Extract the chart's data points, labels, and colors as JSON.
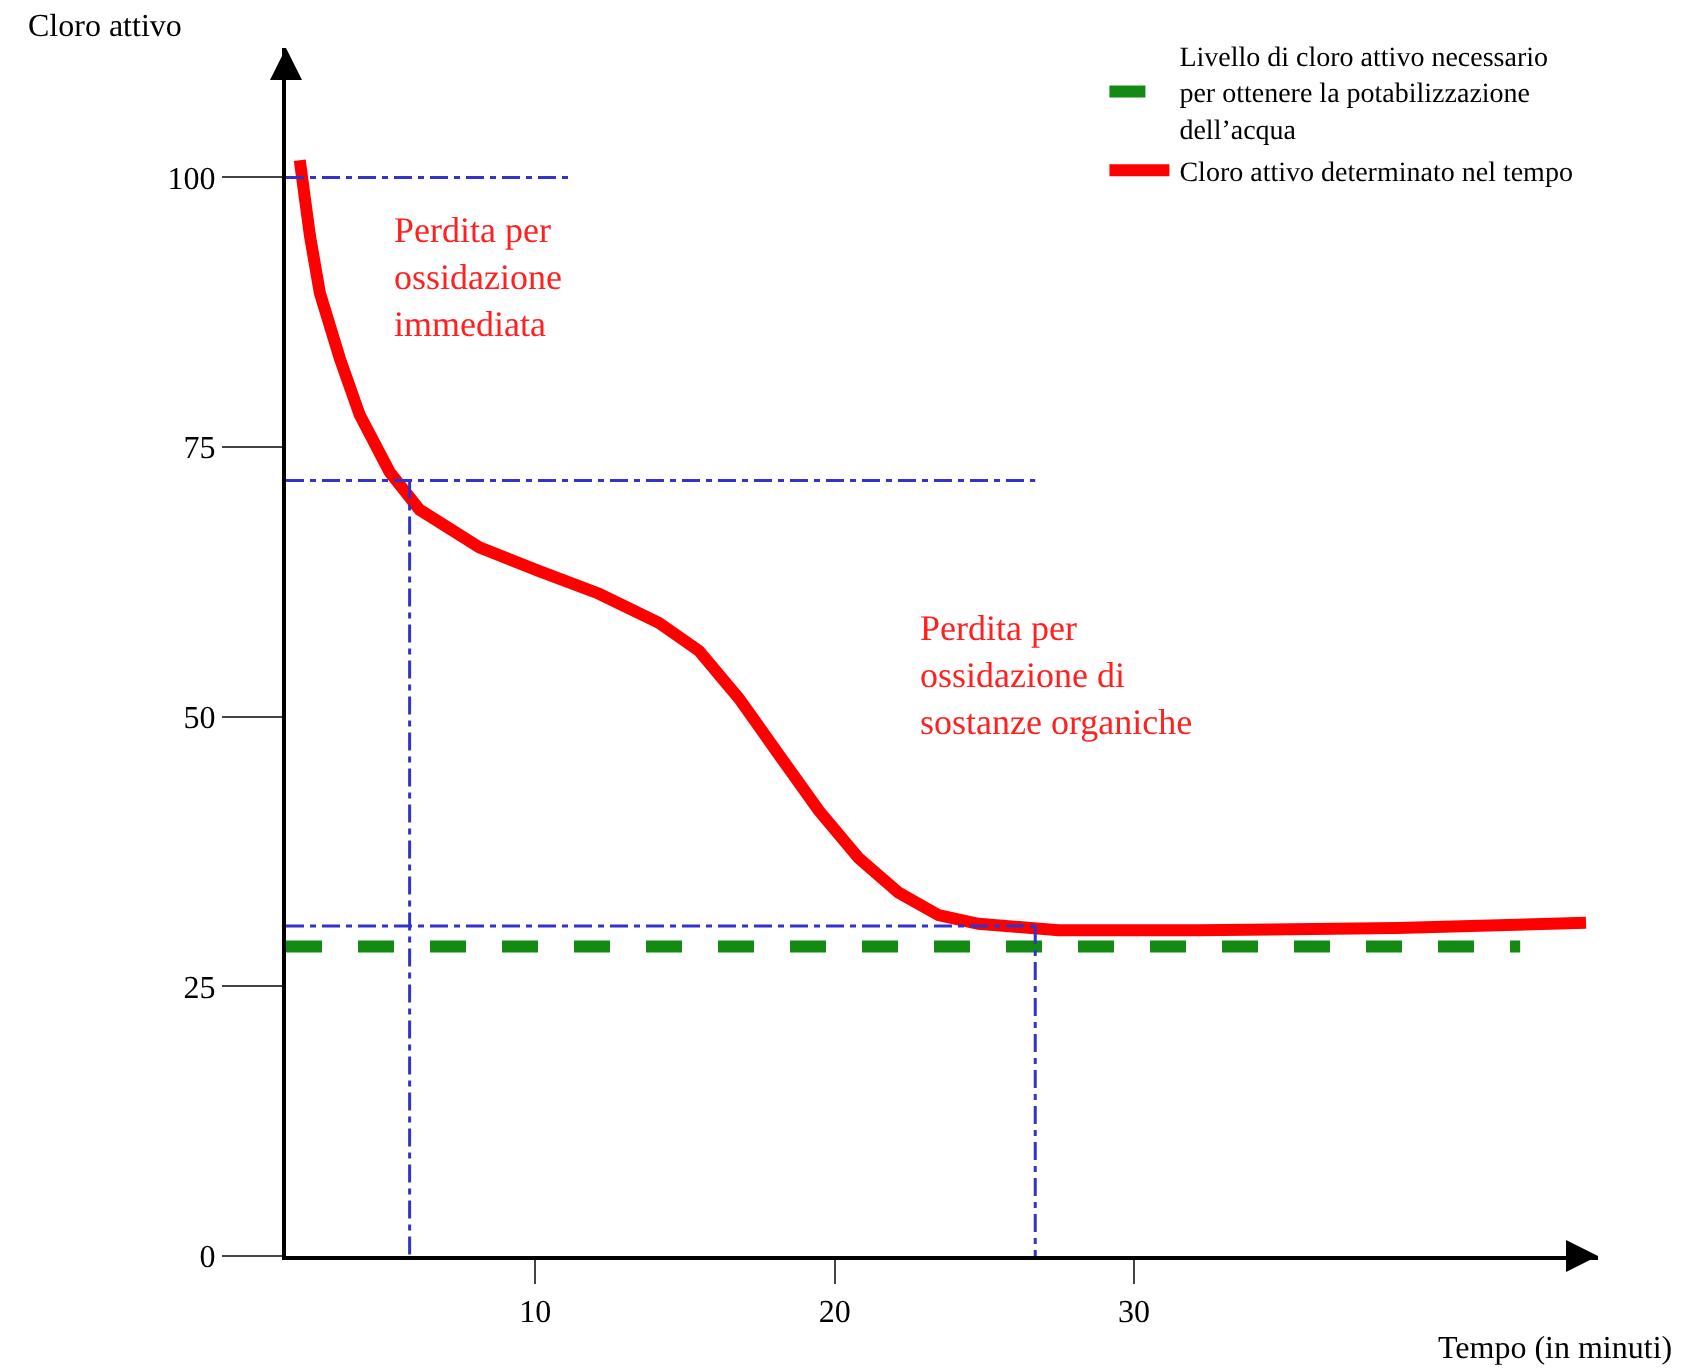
{
  "chart_data": {
    "type": "line",
    "xlabel": "Tempo (in minuti)",
    "ylabel": "Cloro attivo",
    "xlim": [
      1.67,
      45.5
    ],
    "xticks": [
      10,
      20,
      30
    ],
    "ylim": [
      0,
      112
    ],
    "yticks": [
      0,
      25,
      50,
      75,
      100
    ],
    "grid": false,
    "legend": "top right",
    "marker": "none",
    "series": [
      {
        "name": "Livello di cloro attivo necessario per ottenere la potabilizzazione dell’acqua",
        "color": "#138a13",
        "line_style": "dashed",
        "x": [
          1.67,
          42.9
        ],
        "values": [
          28.7,
          28.7
        ]
      },
      {
        "name": "Cloro attivo determinato nel tempo",
        "color": "#ff0000",
        "line_style": "solid",
        "x": [
          2.13,
          2.47,
          2.8,
          3.47,
          4.13,
          5.13,
          6.13,
          8.13,
          10.13,
          12.13,
          14.13,
          15.47,
          16.8,
          18.13,
          19.47,
          20.8,
          22.13,
          23.47,
          24.8,
          27.47,
          32.13,
          38.8,
          45.1
        ],
        "values": [
          101.6,
          94.6,
          89.3,
          83.2,
          78,
          72.7,
          69.2,
          65.7,
          63.5,
          61.4,
          58.7,
          56.1,
          51.7,
          46.5,
          41.3,
          36.9,
          33.7,
          31.6,
          30.8,
          30.2,
          30.2,
          30.4,
          30.9
        ]
      },
      {
        "color": "#3333cc",
        "line_style": "dashed",
        "x": [
          1.67,
          11.1
        ],
        "values": [
          100,
          100
        ]
      },
      {
        "color": "#3333cc",
        "line_style": "dashed",
        "x": [
          1.67,
          26.7
        ],
        "values": [
          71.9,
          71.9
        ]
      },
      {
        "color": "#3333cc",
        "line_style": "dashed",
        "x": [
          1.67,
          26.7
        ],
        "values": [
          30.6,
          30.6
        ]
      },
      {
        "color": "#3333cc",
        "line_style": "dashed",
        "x": [
          5.8,
          5.8
        ],
        "values": [
          71.9,
          0
        ]
      },
      {
        "color": "#3333cc",
        "line_style": "dashed",
        "x": [
          26.7,
          26.7
        ],
        "values": [
          30.6,
          0
        ]
      }
    ],
    "annotations": [
      "Perdita per ossidazione immediata",
      "Perdita per ossidazione di sostanze organiche"
    ]
  }
}
